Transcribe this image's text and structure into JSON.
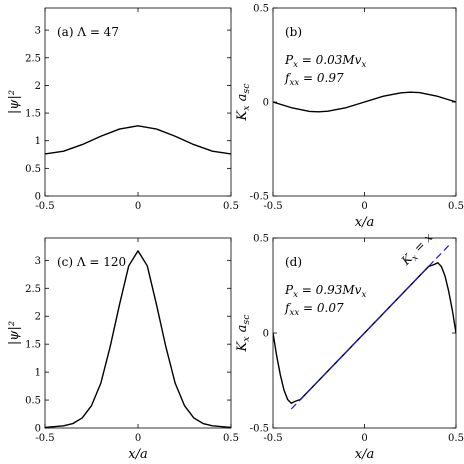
{
  "chart_data": [
    {
      "id": "a",
      "type": "line",
      "panel_label": "(a) Λ = 47",
      "ylabel": "|ψ|²",
      "xlabel": "",
      "xlim": [
        -0.5,
        0.5
      ],
      "ylim": [
        0,
        3.4
      ],
      "xticks": [
        "-0.5",
        "0",
        "0.5"
      ],
      "yticks": [
        "0",
        "0.5",
        "1",
        "1.5",
        "2",
        "2.5",
        "3"
      ],
      "ytick_values": [
        0,
        0.5,
        1,
        1.5,
        2,
        2.5,
        3
      ],
      "series": [
        {
          "x": [
            -0.5,
            -0.4,
            -0.3,
            -0.2,
            -0.1,
            0,
            0.1,
            0.2,
            0.3,
            0.4,
            0.5
          ],
          "values": [
            0.76,
            0.81,
            0.93,
            1.08,
            1.21,
            1.27,
            1.21,
            1.08,
            0.93,
            0.81,
            0.76
          ],
          "color": "#000000"
        }
      ],
      "annotations": []
    },
    {
      "id": "b",
      "type": "line",
      "panel_label": "(b)",
      "ylabel": "K_x a_sc",
      "xlabel": "x/a",
      "xlim": [
        -0.5,
        0.5
      ],
      "ylim": [
        -0.5,
        0.5
      ],
      "xticks": [
        "-0.5",
        "0",
        "0.5"
      ],
      "yticks": [
        "-0.5",
        "0",
        "0.5"
      ],
      "ytick_values": [
        -0.5,
        0,
        0.5
      ],
      "series": [
        {
          "x": [
            -0.5,
            -0.4,
            -0.3,
            -0.25,
            -0.2,
            -0.1,
            0,
            0.1,
            0.2,
            0.25,
            0.3,
            0.4,
            0.5
          ],
          "values": [
            0,
            -0.03,
            -0.05,
            -0.052,
            -0.049,
            -0.03,
            0,
            0.03,
            0.049,
            0.052,
            0.05,
            0.03,
            0
          ],
          "color": "#000000"
        }
      ],
      "annotations": [
        "P_x = 0.03Mv_x",
        "f_xx = 0.97"
      ]
    },
    {
      "id": "c",
      "type": "line",
      "panel_label": "(c) Λ = 120",
      "ylabel": "|ψ|²",
      "xlabel": "x/a",
      "xlim": [
        -0.5,
        0.5
      ],
      "ylim": [
        0,
        3.4
      ],
      "xticks": [
        "-0.5",
        "0",
        "0.5"
      ],
      "yticks": [
        "0",
        "0.5",
        "1",
        "1.5",
        "2",
        "2.5",
        "3"
      ],
      "ytick_values": [
        0,
        0.5,
        1,
        1.5,
        2,
        2.5,
        3
      ],
      "series": [
        {
          "x": [
            -0.5,
            -0.4,
            -0.35,
            -0.3,
            -0.25,
            -0.2,
            -0.15,
            -0.1,
            -0.05,
            0,
            0.05,
            0.1,
            0.15,
            0.2,
            0.25,
            0.3,
            0.35,
            0.4,
            0.5
          ],
          "values": [
            0.01,
            0.04,
            0.08,
            0.18,
            0.4,
            0.8,
            1.45,
            2.2,
            2.9,
            3.17,
            2.9,
            2.2,
            1.45,
            0.8,
            0.4,
            0.18,
            0.08,
            0.04,
            0.01
          ],
          "color": "#000000"
        }
      ],
      "annotations": []
    },
    {
      "id": "d",
      "type": "line",
      "panel_label": "(d)",
      "ylabel": "K_x a_sc",
      "xlabel": "x/a",
      "xlim": [
        -0.5,
        0.5
      ],
      "ylim": [
        -0.5,
        0.5
      ],
      "xticks": [
        "-0.5",
        "0",
        "0.5"
      ],
      "yticks": [
        "-0.5",
        "0",
        "0.5"
      ],
      "ytick_values": [
        -0.5,
        0,
        0.5
      ],
      "series": [
        {
          "x": [
            -0.5,
            -0.48,
            -0.46,
            -0.44,
            -0.42,
            -0.4,
            -0.38,
            -0.35,
            -0.3,
            -0.25,
            -0.2,
            -0.1,
            0,
            0.1,
            0.2,
            0.25,
            0.3,
            0.35,
            0.38,
            0.4,
            0.42,
            0.44,
            0.46,
            0.48,
            0.5
          ],
          "values": [
            0,
            -0.12,
            -0.22,
            -0.3,
            -0.35,
            -0.37,
            -0.36,
            -0.35,
            -0.3,
            -0.25,
            -0.2,
            -0.1,
            0,
            0.1,
            0.2,
            0.25,
            0.3,
            0.35,
            0.36,
            0.37,
            0.35,
            0.3,
            0.22,
            0.12,
            0
          ],
          "color": "#000000"
        },
        {
          "x": [
            -0.4,
            0.46
          ],
          "values": [
            -0.4,
            0.46
          ],
          "color": "#1a1ad8",
          "dashed": true,
          "label": "K_x = x"
        }
      ],
      "annotations": [
        "P_x = 0.93Mv_x",
        "f_xx = 0.07"
      ]
    }
  ]
}
